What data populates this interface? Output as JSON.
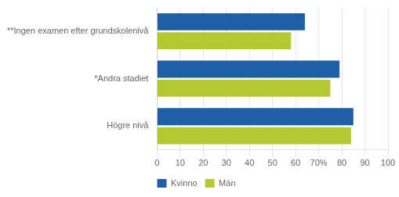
{
  "chart_data": {
    "type": "bar",
    "orientation": "horizontal",
    "categories": [
      "Högre nivå",
      "*Andra stadiet",
      "**Ingen examen efter grundskolenivå"
    ],
    "series": [
      {
        "name": "Kvinno",
        "color": "#1f5fa6",
        "values": [
          85,
          79,
          64
        ]
      },
      {
        "name": "Män",
        "color": "#b5c832",
        "values": [
          84,
          75,
          58
        ]
      }
    ],
    "xlim": [
      0,
      100
    ],
    "xticks": [
      0,
      10,
      20,
      30,
      40,
      50,
      60,
      {
        "value": 70,
        "label": "70%"
      },
      80,
      90,
      100
    ],
    "grid": true,
    "legend": "bottom"
  }
}
